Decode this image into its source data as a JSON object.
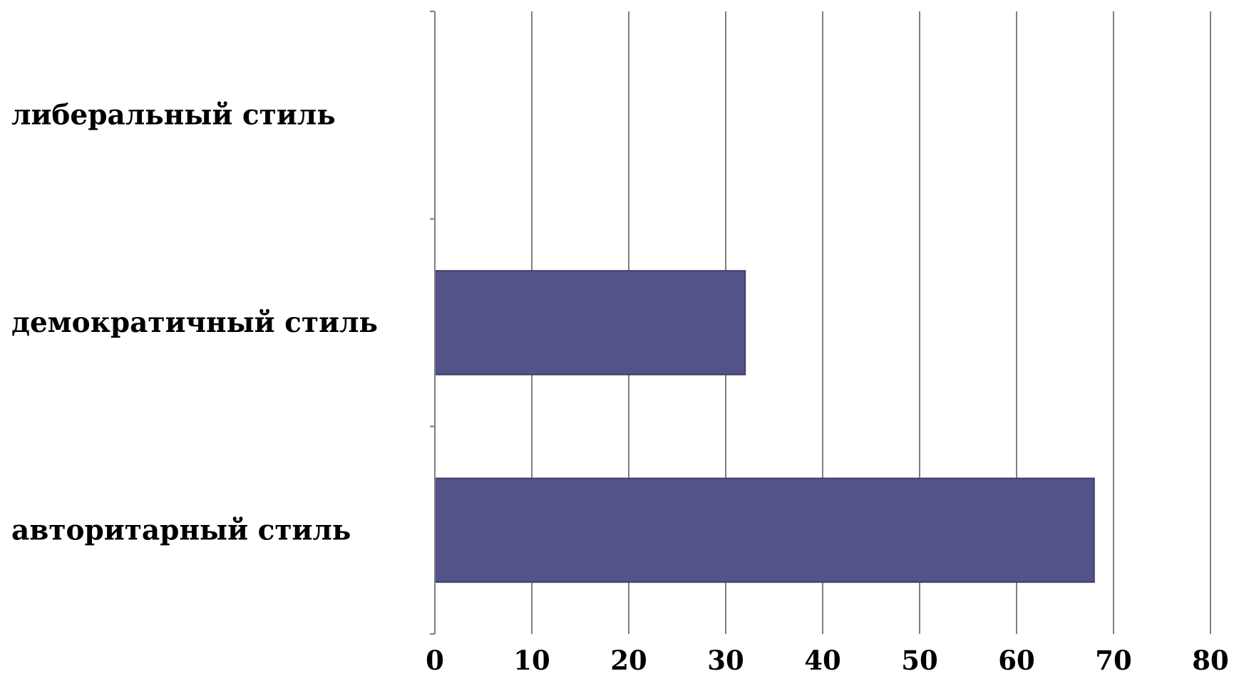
{
  "chart_data": {
    "type": "bar",
    "orientation": "horizontal",
    "categories": [
      "авторитарный стиль",
      "демократичный стиль",
      "либеральный стиль"
    ],
    "values": [
      68,
      32,
      0
    ],
    "xlim": [
      0,
      80
    ],
    "xticks": [
      0,
      10,
      20,
      30,
      40,
      50,
      60,
      70,
      80
    ],
    "xtick_labels": [
      "0",
      "10",
      "20",
      "30",
      "40",
      "50",
      "60",
      "70",
      "80"
    ],
    "grid": "vertical",
    "legend": "none",
    "colors": {
      "bar": "#545389",
      "bar_edge": "#3f3e6e",
      "grid": "#7f7f7f",
      "text": "#000000"
    }
  }
}
